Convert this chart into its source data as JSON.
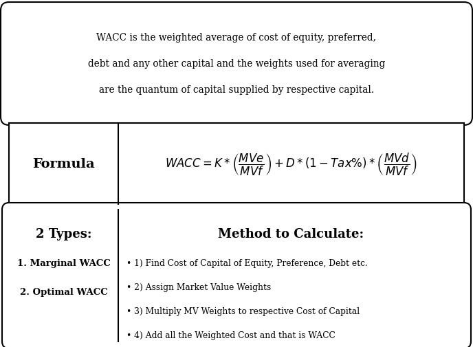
{
  "bg_color": "#ffffff",
  "border_color": "#000000",
  "top_text_line1": "WACC is the weighted average of cost of equity, preferred,",
  "top_text_line2": "debt and any other capital and the weights used for averaging",
  "top_text_line3": "are the quantum of capital supplied by respective capital.",
  "formula_label": "Formula",
  "types_title": "2 Types:",
  "types_items": [
    "1. Marginal WACC",
    "2. Optimal WACC"
  ],
  "method_title": "Method to Calculate:",
  "method_items": [
    "• 1) Find Cost of Capital of Equity, Preference, Debt etc.",
    "• 2) Assign Market Value Weights",
    "• 3) Multiply MV Weights to respective Cost of Capital",
    "• 4) Add all the Weighted Cost and that is WACC"
  ],
  "fig_width": 6.88,
  "fig_height": 5.06,
  "dpi": 100
}
